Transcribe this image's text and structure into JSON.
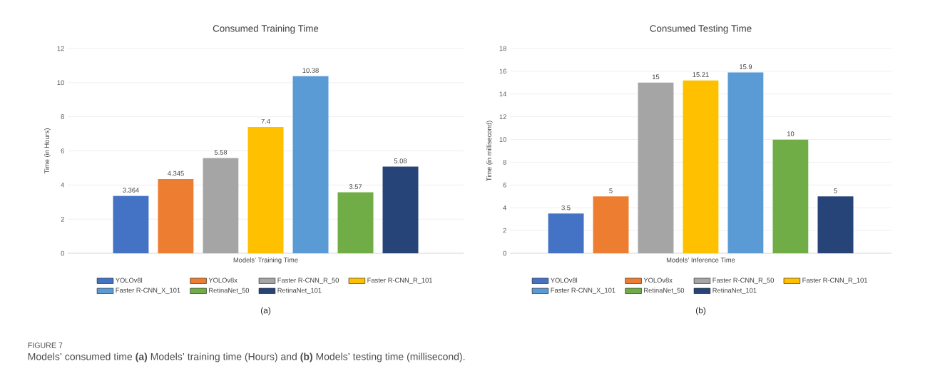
{
  "chart_data": [
    {
      "type": "bar",
      "title": "Consumed Training Time",
      "xlabel": "Models’ Training Time",
      "ylabel": "Time (in Hours)",
      "categories": [
        null
      ],
      "ylim": [
        0,
        12
      ],
      "yticks": [
        0,
        2,
        4,
        6,
        8,
        10,
        12
      ],
      "grid": "y",
      "legend": "bottom",
      "data_labels": true,
      "series": [
        {
          "name": "YOLOv8l",
          "color": "#4472c4",
          "values": [
            3.364
          ]
        },
        {
          "name": "YOLOv8x",
          "color": "#ed7d31",
          "values": [
            4.345
          ]
        },
        {
          "name": "Faster R-CNN_R_50",
          "color": "#a5a5a5",
          "values": [
            5.58
          ]
        },
        {
          "name": "Faster R-CNN_R_101",
          "color": "#ffc000",
          "values": [
            7.4
          ]
        },
        {
          "name": "Faster R-CNN_X_101",
          "color": "#5b9bd5",
          "values": [
            10.38
          ]
        },
        {
          "name": "RetinaNet_50",
          "color": "#70ad47",
          "values": [
            3.57
          ]
        },
        {
          "name": "RetinaNet_101",
          "color": "#264478",
          "values": [
            5.08
          ]
        }
      ],
      "annotations": [
        "(a)",
        "FIGURE 7",
        "Models’ consumed time **(a)** Models’ training time (Hours) and **(b)** Models’ testing time (millisecond)."
      ]
    },
    {
      "type": "bar",
      "title": "Consumed Testing Time",
      "xlabel": "Models’ Inference Time",
      "ylabel": "Time (in millisecond)",
      "categories": [
        null
      ],
      "ylim": [
        0,
        18
      ],
      "yticks": [
        0,
        2,
        4,
        6,
        8,
        10,
        12,
        14,
        16,
        18
      ],
      "grid": "y",
      "legend": "bottom",
      "data_labels": true,
      "series": [
        {
          "name": "YOLOv8l",
          "color": "#4472c4",
          "values": [
            3.5
          ]
        },
        {
          "name": "YOLOv8x",
          "color": "#ed7d31",
          "values": [
            5
          ]
        },
        {
          "name": "Faster R-CNN_R_50",
          "color": "#a5a5a5",
          "values": [
            15
          ]
        },
        {
          "name": "Faster R-CNN_R_101",
          "color": "#ffc000",
          "values": [
            15.21
          ]
        },
        {
          "name": "Faster R-CNN_X_101",
          "color": "#5b9bd5",
          "values": [
            15.9
          ]
        },
        {
          "name": "RetinaNet_50",
          "color": "#70ad47",
          "values": [
            10
          ]
        },
        {
          "name": "RetinaNet_101",
          "color": "#264478",
          "values": [
            5
          ]
        }
      ],
      "annotations": [
        "(b)"
      ]
    }
  ]
}
